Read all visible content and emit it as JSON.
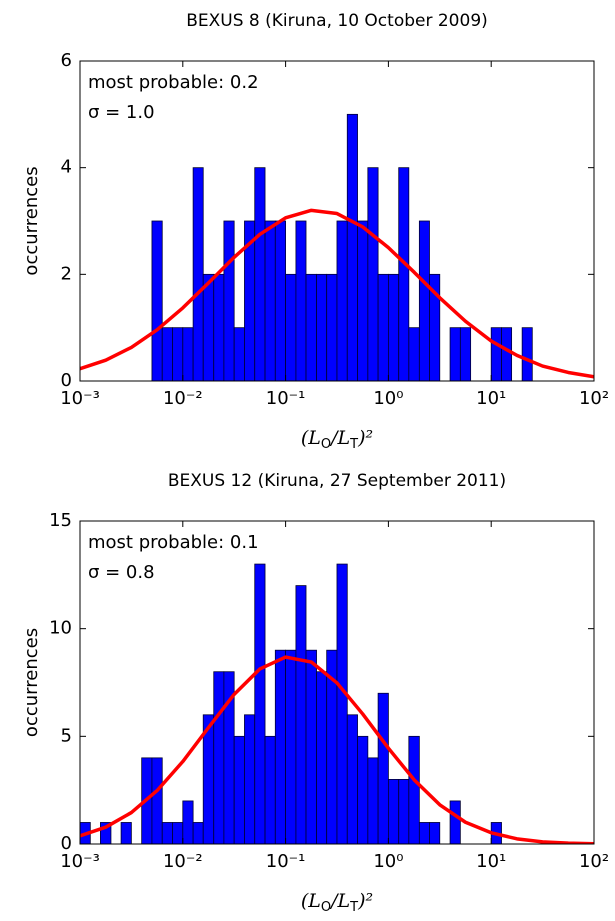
{
  "chart_data": [
    {
      "type": "histogram",
      "title": "BEXUS 8 (Kiruna, 10 October 2009)",
      "xlabel": [
        "(L",
        "O",
        "/L",
        "T",
        ")²"
      ],
      "ylabel": "occurrences",
      "annotations": [
        "most probable: 0.2",
        "σ = 1.0"
      ],
      "log_x": true,
      "color": "#0000ff",
      "bins": [
        0.00501,
        0.00631,
        0.00794,
        0.01,
        0.0126,
        0.0158,
        0.02,
        0.0251,
        0.0316,
        0.0398,
        0.0501,
        0.0631,
        0.0794,
        0.1,
        0.126,
        0.158,
        0.2,
        0.251,
        0.316,
        0.398,
        0.501,
        0.631,
        0.794,
        1,
        1.26,
        1.58,
        2,
        2.51,
        3.16,
        3.98,
        5.01,
        6.31,
        7.94,
        10,
        12.6,
        15.8,
        20,
        25.1
      ],
      "values": [
        3,
        1,
        1,
        1,
        4,
        2,
        2,
        3,
        1,
        3,
        4,
        3,
        3,
        2,
        3,
        2,
        2,
        2,
        3,
        5,
        3,
        4,
        2,
        2,
        4,
        1,
        3,
        2,
        0,
        1,
        1,
        0,
        0,
        1,
        1,
        0,
        1
      ],
      "fit": {
        "color": "#ff0000",
        "x": [
          0.001,
          0.00178,
          0.00316,
          0.00562,
          0.01,
          0.0178,
          0.0316,
          0.0562,
          0.1,
          0.178,
          0.316,
          0.562,
          1,
          1.78,
          3.16,
          5.62,
          10,
          17.8,
          31.6,
          56.2,
          100
        ],
        "values": [
          0.23,
          0.39,
          0.63,
          0.96,
          1.37,
          1.84,
          2.32,
          2.75,
          3.06,
          3.2,
          3.14,
          2.89,
          2.5,
          2.04,
          1.56,
          1.12,
          0.75,
          0.48,
          0.28,
          0.16,
          0.08
        ]
      },
      "xlim": [
        0.001,
        100
      ],
      "ylim": [
        0,
        6
      ],
      "xticks": [
        {
          "value": 0.001,
          "label": "10⁻³"
        },
        {
          "value": 0.01,
          "label": "10⁻²"
        },
        {
          "value": 0.1,
          "label": "10⁻¹"
        },
        {
          "value": 1,
          "label": "10⁰"
        },
        {
          "value": 10,
          "label": "10¹"
        },
        {
          "value": 100,
          "label": "10²"
        }
      ],
      "yticks": [
        0,
        2,
        4,
        6
      ]
    },
    {
      "type": "histogram",
      "title": "BEXUS 12 (Kiruna, 27 September 2011)",
      "xlabel": [
        "(L",
        "O",
        "/L",
        "T",
        ")²"
      ],
      "ylabel": "occurrences",
      "annotations": [
        "most probable: 0.1",
        "σ = 0.8"
      ],
      "log_x": true,
      "color": "#0000ff",
      "bins": [
        0.001,
        0.00126,
        0.00158,
        0.002,
        0.00251,
        0.00316,
        0.00398,
        0.00501,
        0.00631,
        0.00794,
        0.01,
        0.0126,
        0.0158,
        0.02,
        0.0251,
        0.0316,
        0.0398,
        0.0501,
        0.0631,
        0.0794,
        0.1,
        0.126,
        0.158,
        0.2,
        0.251,
        0.316,
        0.398,
        0.501,
        0.631,
        0.794,
        1,
        1.26,
        1.58,
        2,
        2.51,
        3.16,
        3.98,
        5.01,
        6.31,
        7.94,
        10,
        12.6
      ],
      "values": [
        1,
        0,
        1,
        0,
        1,
        0,
        4,
        4,
        1,
        1,
        2,
        1,
        6,
        8,
        8,
        5,
        6,
        13,
        5,
        9,
        9,
        12,
        9,
        8,
        9,
        13,
        6,
        5,
        4,
        7,
        3,
        3,
        5,
        1,
        1,
        0,
        2,
        0,
        0,
        0,
        1
      ],
      "fit": {
        "color": "#ff0000",
        "x": [
          0.001,
          0.00178,
          0.00316,
          0.00562,
          0.01,
          0.0178,
          0.0316,
          0.0562,
          0.1,
          0.178,
          0.316,
          0.562,
          1,
          1.78,
          3.16,
          5.62,
          10,
          17.8,
          31.6,
          56.2,
          100
        ],
        "values": [
          0.38,
          0.78,
          1.46,
          2.48,
          3.83,
          5.41,
          6.95,
          8.13,
          8.68,
          8.45,
          7.48,
          6.04,
          4.45,
          2.98,
          1.82,
          1.01,
          0.52,
          0.24,
          0.1,
          0.04,
          0.01
        ]
      },
      "xlim": [
        0.001,
        100
      ],
      "ylim": [
        0,
        15
      ],
      "xticks": [
        {
          "value": 0.001,
          "label": "10⁻³"
        },
        {
          "value": 0.01,
          "label": "10⁻²"
        },
        {
          "value": 0.1,
          "label": "10⁻¹"
        },
        {
          "value": 1,
          "label": "10⁰"
        },
        {
          "value": 10,
          "label": "10¹"
        },
        {
          "value": 100,
          "label": "10²"
        }
      ],
      "yticks": [
        0,
        5,
        10,
        15
      ]
    }
  ]
}
